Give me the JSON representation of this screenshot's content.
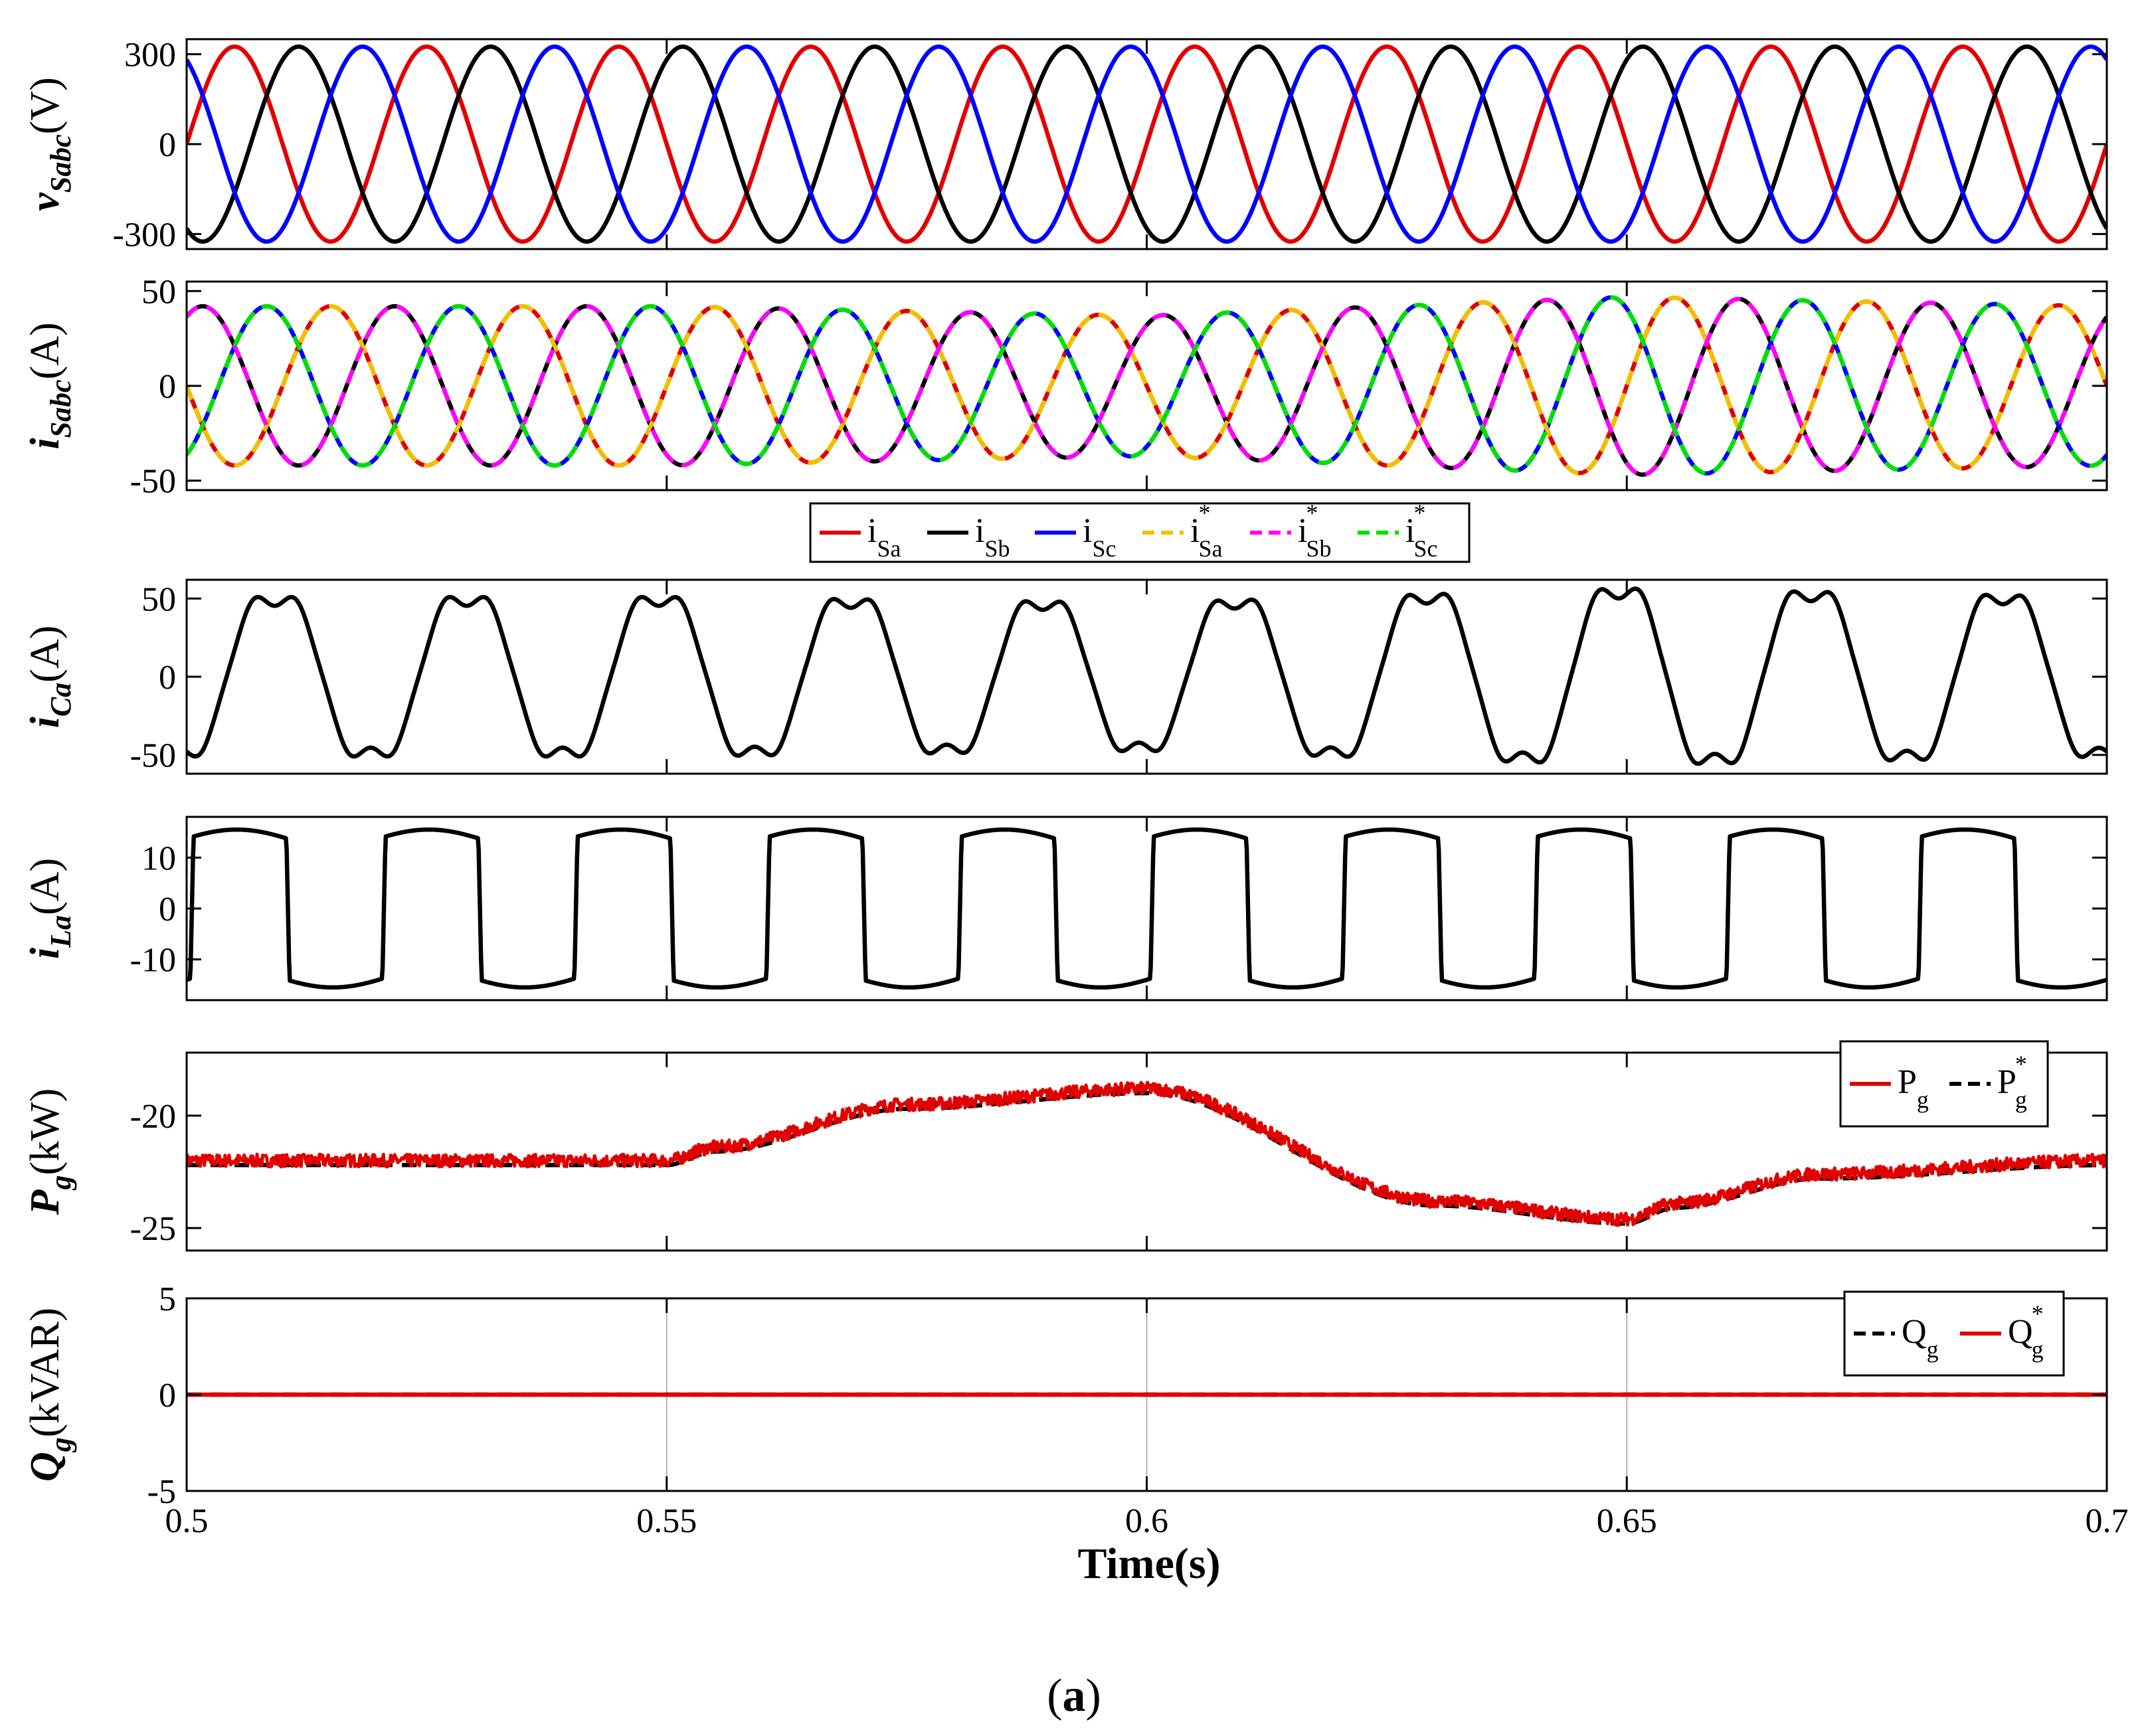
{
  "chart_data": [
    {
      "type": "line",
      "ylabel_main": "v",
      "ylabel_sub": "Sabc",
      "ylabel_unit": "(V)",
      "xlim": [
        0.5,
        0.7
      ],
      "ylim": [
        -350,
        350
      ],
      "yticks": [
        300,
        0,
        -300
      ],
      "frequency_hz": 50,
      "amplitude": 325,
      "series": [
        {
          "color": "#e00000",
          "phase_deg": 0
        },
        {
          "color": "#000000",
          "phase_deg": -120
        },
        {
          "color": "#0000ff",
          "phase_deg": 120
        }
      ]
    },
    {
      "type": "line",
      "ylabel_main": "i",
      "ylabel_sub": "Sabc",
      "ylabel_unit": "(A)",
      "xlim": [
        0.5,
        0.7
      ],
      "ylim": [
        -55,
        55
      ],
      "yticks": [
        50,
        0,
        -50
      ],
      "frequency_hz": 50,
      "amplitude_profile": {
        "t": [
          0.5,
          0.55,
          0.6,
          0.65,
          0.7
        ],
        "amp": [
          42,
          42,
          37,
          47,
          42
        ]
      },
      "series": [
        {
          "name": "i",
          "sub": "Sa",
          "star": false,
          "color": "#e00000",
          "dash": false,
          "phase_deg": -180
        },
        {
          "name": "i",
          "sub": "Sb",
          "star": false,
          "color": "#000000",
          "dash": false,
          "phase_deg": 60
        },
        {
          "name": "i",
          "sub": "Sc",
          "star": false,
          "color": "#0000ff",
          "dash": false,
          "phase_deg": -60
        },
        {
          "name": "i",
          "sub": "Sa",
          "star": true,
          "color": "#f0c000",
          "dash": true,
          "phase_deg": -180
        },
        {
          "name": "i",
          "sub": "Sb",
          "star": true,
          "color": "#ff00ff",
          "dash": true,
          "phase_deg": 60
        },
        {
          "name": "i",
          "sub": "Sc",
          "star": true,
          "color": "#00e000",
          "dash": true,
          "phase_deg": -60
        }
      ]
    },
    {
      "type": "line",
      "ylabel_main": "i",
      "ylabel_sub": "Ca",
      "ylabel_unit": "(A)",
      "xlim": [
        0.5,
        0.7
      ],
      "ylim": [
        -62,
        62
      ],
      "yticks": [
        50,
        0,
        -50
      ],
      "frequency_hz": 50,
      "amplitude_profile": {
        "t": [
          0.5,
          0.55,
          0.6,
          0.65,
          0.7
        ],
        "amp": [
          56,
          56,
          52,
          62,
          56
        ]
      },
      "series": [
        {
          "color": "#000000",
          "phase_deg": -75
        }
      ]
    },
    {
      "type": "line",
      "ylabel_main": "i",
      "ylabel_sub": "La",
      "ylabel_unit": "(A)",
      "xlim": [
        0.5,
        0.7
      ],
      "ylim": [
        -18,
        18
      ],
      "yticks": [
        10,
        0,
        -10
      ],
      "frequency_hz": 50,
      "levels": [
        13,
        15.5
      ],
      "series": [
        {
          "color": "#000000"
        }
      ]
    },
    {
      "type": "line",
      "ylabel_main": "P",
      "ylabel_sub": "g",
      "ylabel_unit": "(kW)",
      "xlim": [
        0.5,
        0.7
      ],
      "ylim": [
        -26,
        -17.2
      ],
      "yticks": [
        -20,
        -25
      ],
      "profile": {
        "t": [
          0.5,
          0.55,
          0.555,
          0.575,
          0.6,
          0.63,
          0.65,
          0.655,
          0.67,
          0.7
        ],
        "p": [
          -22.0,
          -22.0,
          -21.4,
          -19.5,
          -18.8,
          -23.8,
          -24.6,
          -23.9,
          -22.6,
          -22.0
        ]
      },
      "series": [
        {
          "name": "P",
          "sub": "g",
          "star": false,
          "color": "#e00000",
          "dash": false,
          "noise": 0.28
        },
        {
          "name": "P",
          "sub": "g",
          "star": true,
          "color": "#000000",
          "dash": true,
          "offset": -0.2
        }
      ]
    },
    {
      "type": "line",
      "ylabel_main": "Q",
      "ylabel_sub": "g",
      "ylabel_unit": "(kVAR)",
      "xlim": [
        0.5,
        0.7
      ],
      "ylim": [
        -5,
        5
      ],
      "yticks": [
        5,
        0,
        -5
      ],
      "xticks": [
        0.5,
        0.55,
        0.6,
        0.65,
        0.7
      ],
      "xticklabels": [
        "0.5",
        "0.55",
        "0.6",
        "0.65",
        "0.7"
      ],
      "vgrid": [
        0.55,
        0.6,
        0.65
      ],
      "series": [
        {
          "name": "Q",
          "sub": "g",
          "star": false,
          "color": "#000000",
          "dash": true,
          "value": 0
        },
        {
          "name": "Q",
          "sub": "g",
          "star": true,
          "color": "#e00000",
          "dash": false,
          "value": 0
        }
      ]
    }
  ],
  "figure": {
    "xlabel": "Time(s)",
    "caption_open": "(",
    "caption_letter": "a",
    "caption_close": ")"
  }
}
